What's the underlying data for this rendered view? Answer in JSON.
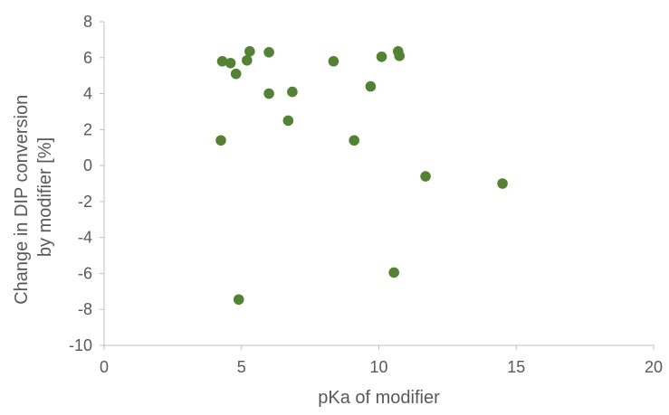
{
  "chart_data": {
    "type": "scatter",
    "title": "",
    "xlabel": "pKa of modifier",
    "ylabel_lines": [
      "Change in DIP conversion",
      "by modifier [%]"
    ],
    "xlim": [
      0,
      20
    ],
    "ylim": [
      -10,
      8
    ],
    "x_ticks": [
      0,
      5,
      10,
      15,
      20
    ],
    "y_ticks": [
      -10,
      -8,
      -6,
      -4,
      -2,
      0,
      2,
      4,
      6,
      8
    ],
    "grid": false,
    "legend": "none",
    "marker_color": "#548235",
    "axis_color": "#BFBFBF",
    "points": [
      {
        "x": 4.3,
        "y": 5.8
      },
      {
        "x": 4.6,
        "y": 5.7
      },
      {
        "x": 4.8,
        "y": 5.1
      },
      {
        "x": 5.2,
        "y": 5.85
      },
      {
        "x": 5.3,
        "y": 6.35
      },
      {
        "x": 6.0,
        "y": 6.3
      },
      {
        "x": 6.0,
        "y": 4.0
      },
      {
        "x": 6.85,
        "y": 4.1
      },
      {
        "x": 6.7,
        "y": 2.5
      },
      {
        "x": 4.25,
        "y": 1.4
      },
      {
        "x": 4.9,
        "y": -7.45
      },
      {
        "x": 8.35,
        "y": 5.8
      },
      {
        "x": 9.7,
        "y": 4.4
      },
      {
        "x": 9.1,
        "y": 1.4
      },
      {
        "x": 10.1,
        "y": 6.05
      },
      {
        "x": 10.7,
        "y": 6.35
      },
      {
        "x": 10.75,
        "y": 6.1
      },
      {
        "x": 10.55,
        "y": -5.95
      },
      {
        "x": 11.7,
        "y": -0.6
      },
      {
        "x": 14.5,
        "y": -1.0
      }
    ]
  }
}
